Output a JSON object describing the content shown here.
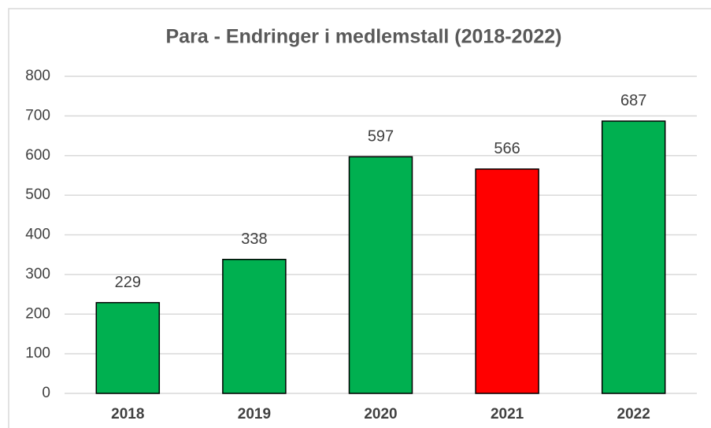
{
  "chart_data": {
    "type": "bar",
    "title": "Para - Endringer i medlemstall  (2018-2022)",
    "categories": [
      "2018",
      "2019",
      "2020",
      "2021",
      "2022"
    ],
    "values": [
      229,
      338,
      597,
      566,
      687
    ],
    "colors": [
      "#00b050",
      "#00b050",
      "#00b050",
      "#ff0000",
      "#00b050"
    ],
    "ylim": [
      0,
      800
    ],
    "yticks": [
      0,
      100,
      200,
      300,
      400,
      500,
      600,
      700,
      800
    ],
    "grid": true
  }
}
